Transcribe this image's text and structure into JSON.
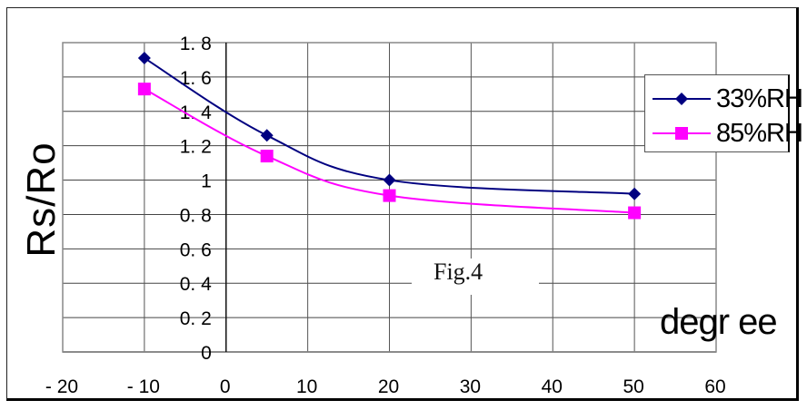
{
  "chart_data": {
    "type": "line",
    "title": "Fig.4",
    "xlabel": "degr ee",
    "ylabel": "Rs/Ro",
    "xlim": [
      -20,
      60
    ],
    "ylim": [
      0,
      1.8
    ],
    "x_ticks": [
      "- 20",
      "- 10",
      "0",
      "10",
      "20",
      "30",
      "40",
      "50",
      "60"
    ],
    "y_ticks": [
      "0",
      "0. 2",
      "0. 4",
      "0. 6",
      "0. 8",
      "1",
      "1. 2",
      "1. 4",
      "1. 6",
      "1. 8"
    ],
    "grid": true,
    "legend_position": "right",
    "x": [
      -10,
      5,
      20,
      50
    ],
    "series": [
      {
        "name": "33%RH",
        "legend_label": "33%RH",
        "color": "#000080",
        "marker": "diamond",
        "values": [
          1.71,
          1.26,
          1.0,
          0.92
        ]
      },
      {
        "name": "85%RH",
        "legend_label": "85%RH",
        "color": "#ff00ff",
        "marker": "square",
        "values": [
          1.53,
          1.14,
          0.91,
          0.81
        ]
      }
    ]
  }
}
